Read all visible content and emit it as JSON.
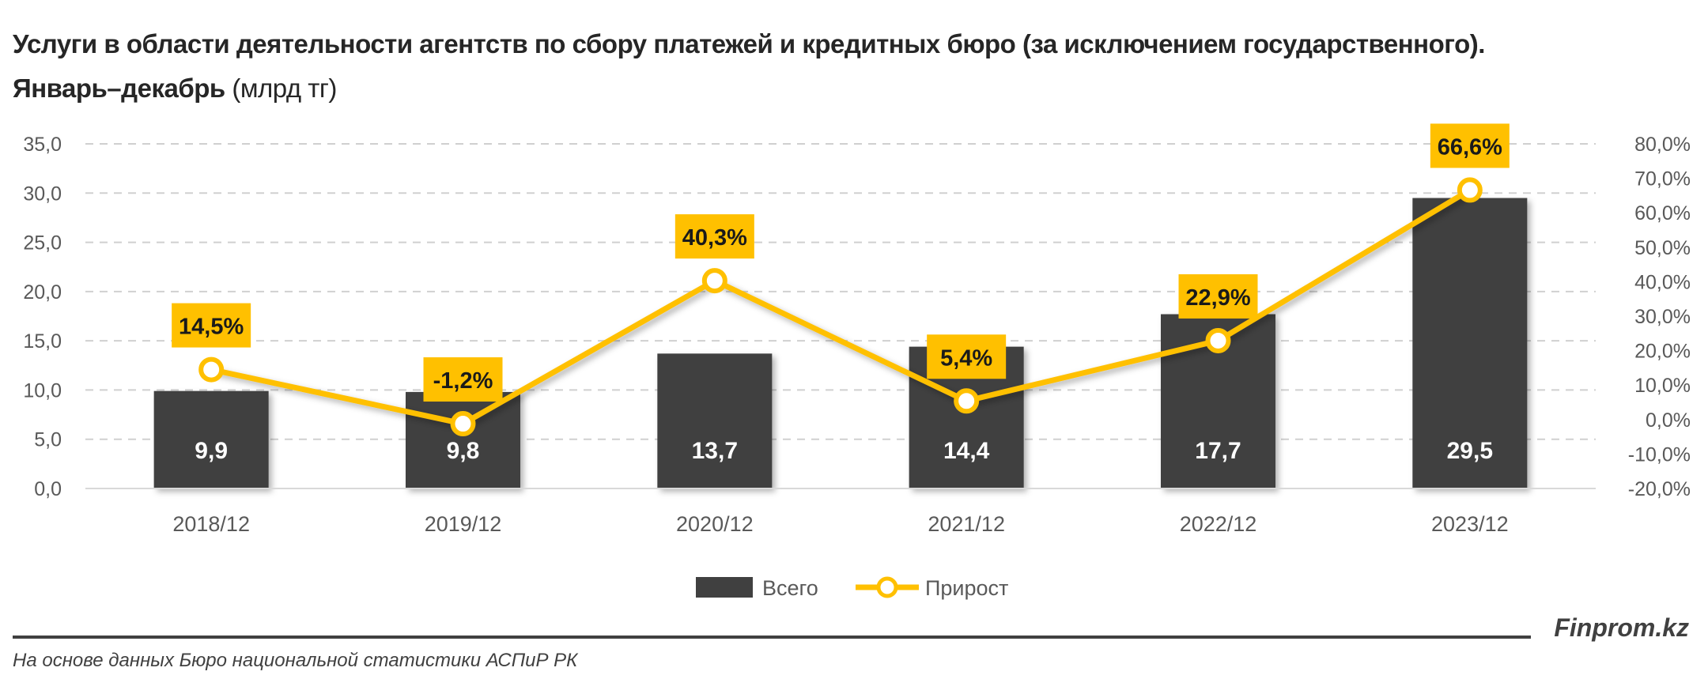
{
  "title": {
    "main": "Услуги в области деятельности агентств по сбору платежей и кредитных бюро (за исключением государственного). Январь–декабрь",
    "unit": "(млрд тг)"
  },
  "chart_data": {
    "type": "bar+line",
    "categories": [
      "2018/12",
      "2019/12",
      "2020/12",
      "2021/12",
      "2022/12",
      "2023/12"
    ],
    "series": [
      {
        "name": "Всего",
        "type": "bar",
        "axis": "left",
        "values": [
          9.9,
          9.8,
          13.7,
          14.4,
          17.7,
          29.5
        ],
        "labels": [
          "9,9",
          "9,8",
          "13,7",
          "14,4",
          "17,7",
          "29,5"
        ],
        "color": "#404040"
      },
      {
        "name": "Прирост",
        "type": "line",
        "axis": "right",
        "values": [
          14.5,
          -1.2,
          40.3,
          5.4,
          22.9,
          66.6
        ],
        "labels": [
          "14,5%",
          "-1,2%",
          "40,3%",
          "5,4%",
          "22,9%",
          "66,6%"
        ],
        "color": "#FFC000"
      }
    ],
    "y_left": {
      "lim": [
        0,
        35
      ],
      "ticks": [
        "0,0",
        "5,0",
        "10,0",
        "15,0",
        "20,0",
        "25,0",
        "30,0",
        "35,0"
      ]
    },
    "y_right": {
      "lim": [
        -20,
        80
      ],
      "ticks": [
        "-20,0%",
        "-10,0%",
        "0,0%",
        "10,0%",
        "20,0%",
        "30,0%",
        "40,0%",
        "50,0%",
        "60,0%",
        "70,0%",
        "80,0%"
      ]
    },
    "grid": true,
    "legend": "bottom"
  },
  "footer": {
    "brand": "Finprom.kz",
    "source": "На основе данных Бюро национальной статистики АСПиР РК"
  }
}
